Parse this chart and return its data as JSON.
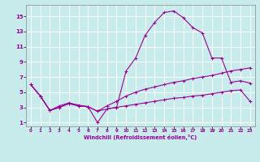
{
  "xlabel": "Windchill (Refroidissement éolien,°C)",
  "bg_color": "#c8ecec",
  "line_color": "#990099",
  "grid_color": "#ffffff",
  "xlim": [
    -0.5,
    23.5
  ],
  "ylim": [
    0.5,
    16.5
  ],
  "xticks": [
    0,
    1,
    2,
    3,
    4,
    5,
    6,
    7,
    8,
    9,
    10,
    11,
    12,
    13,
    14,
    15,
    16,
    17,
    18,
    19,
    20,
    21,
    22,
    23
  ],
  "yticks": [
    1,
    3,
    5,
    7,
    9,
    11,
    13,
    15
  ],
  "series1_y": [
    6.0,
    4.5,
    2.6,
    3.0,
    3.5,
    3.2,
    3.1,
    1.0,
    2.8,
    3.0,
    7.8,
    9.5,
    12.5,
    14.2,
    15.5,
    15.7,
    14.8,
    13.5,
    12.8,
    9.5,
    9.5,
    6.3,
    6.5,
    6.2
  ],
  "series2_y": [
    6.0,
    4.5,
    2.6,
    3.2,
    3.6,
    3.3,
    3.1,
    2.5,
    3.2,
    3.8,
    4.5,
    5.0,
    5.4,
    5.7,
    6.0,
    6.3,
    6.5,
    6.8,
    7.0,
    7.2,
    7.5,
    7.8,
    8.0,
    8.2
  ],
  "series3_y": [
    6.0,
    4.5,
    2.6,
    3.0,
    3.5,
    3.2,
    3.1,
    2.5,
    2.8,
    3.0,
    3.2,
    3.4,
    3.6,
    3.8,
    4.0,
    4.2,
    4.3,
    4.5,
    4.6,
    4.8,
    5.0,
    5.2,
    5.3,
    3.8
  ]
}
